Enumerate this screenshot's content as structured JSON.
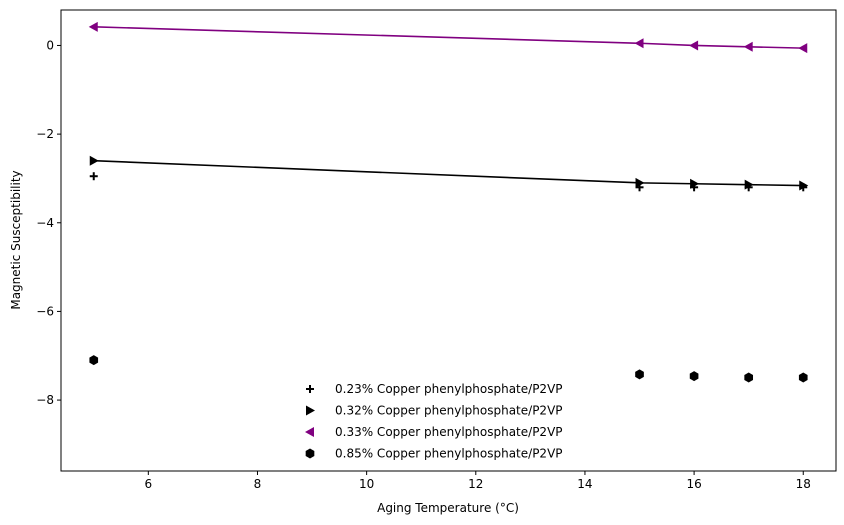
{
  "chart_data": {
    "type": "scatter",
    "xlabel": "Aging Temperature (°C)",
    "ylabel": "Magnetic Susceptibility",
    "xlim": [
      4.4,
      18.6
    ],
    "ylim": [
      -9.6,
      0.8
    ],
    "xticks": [
      6,
      8,
      10,
      12,
      14,
      16,
      18
    ],
    "yticks": [
      0,
      -2,
      -4,
      -6,
      -8
    ],
    "xtick_labels": [
      "6",
      "8",
      "10",
      "12",
      "14",
      "16",
      "18"
    ],
    "ytick_labels": [
      "0",
      "−2",
      "−4",
      "−6",
      "−8"
    ],
    "grid": false,
    "legend_position": "lower-center",
    "series": [
      {
        "name": "0.23% Copper phenylphosphate/P2VP",
        "marker": "plus",
        "color": "#000000",
        "line": false,
        "x": [
          5,
          15,
          16,
          17,
          18
        ],
        "y": [
          -2.95,
          -3.2,
          -3.2,
          -3.2,
          -3.2
        ]
      },
      {
        "name": "0.32% Copper phenylphosphate/P2VP",
        "marker": "triangle-right",
        "color": "#000000",
        "line": true,
        "x": [
          5,
          15,
          16,
          17,
          18
        ],
        "y": [
          -2.6,
          -3.1,
          -3.12,
          -3.14,
          -3.16
        ]
      },
      {
        "name": "0.33% Copper phenylphosphate/P2VP",
        "marker": "triangle-left",
        "color": "#800080",
        "line": true,
        "x": [
          5,
          15,
          16,
          17,
          18
        ],
        "y": [
          0.42,
          0.05,
          0.0,
          -0.03,
          -0.06
        ]
      },
      {
        "name": "0.85% Copper phenylphosphate/P2VP",
        "marker": "hexagon",
        "color": "#000000",
        "line": false,
        "x": [
          5,
          15,
          16,
          17,
          18
        ],
        "y": [
          -7.1,
          -7.42,
          -7.46,
          -7.49,
          -7.49
        ]
      }
    ]
  }
}
